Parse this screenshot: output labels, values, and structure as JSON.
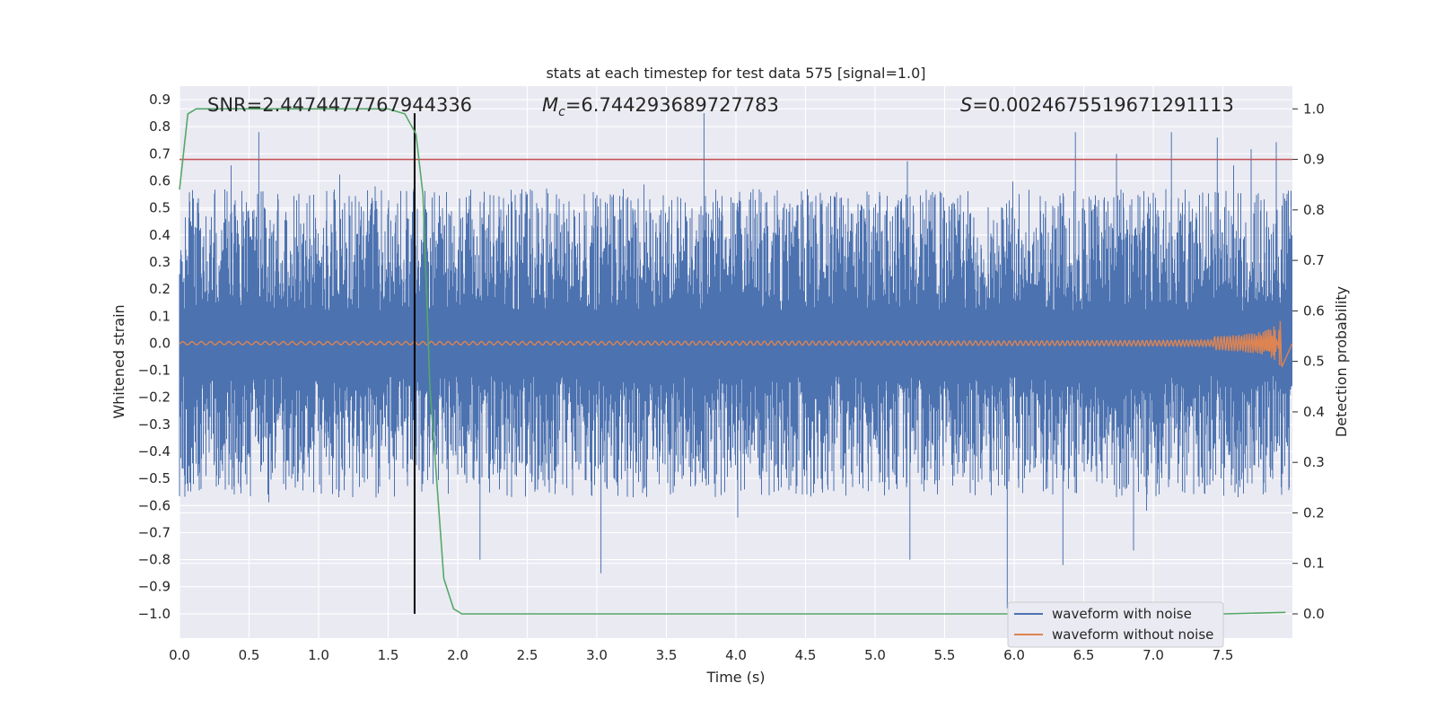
{
  "chart_data": {
    "type": "line",
    "title": "stats at each timestep for test data 575 [signal=1.0]",
    "xlabel": "Time (s)",
    "ylabel": "Whitened strain",
    "y2label": "Detection probability",
    "xlim": [
      0.0,
      8.0
    ],
    "ylim": [
      -1.09,
      0.95
    ],
    "y2lim": [
      -0.048,
      1.045
    ],
    "x_ticks": [
      "0.0",
      "0.5",
      "1.0",
      "1.5",
      "2.0",
      "2.5",
      "3.0",
      "3.5",
      "4.0",
      "4.5",
      "5.0",
      "5.5",
      "6.0",
      "6.5",
      "7.0",
      "7.5"
    ],
    "y_ticks": [
      "0.9",
      "0.8",
      "0.7",
      "0.6",
      "0.5",
      "0.4",
      "0.3",
      "0.2",
      "0.1",
      "0.0",
      "−0.1",
      "−0.2",
      "−0.3",
      "−0.4",
      "−0.5",
      "−0.6",
      "−0.7",
      "−0.8",
      "−0.9",
      "−1.0"
    ],
    "y2_ticks": [
      "1.0",
      "0.9",
      "0.8",
      "0.7",
      "0.6",
      "0.5",
      "0.4",
      "0.3",
      "0.2",
      "0.1",
      "0.0"
    ],
    "grid": true,
    "legend_position": "bottom-right",
    "stats": {
      "snr_text": "SNR=2.4474477767944336",
      "mc_symbol": "M",
      "mc_subscript": "c",
      "mc_value": "=6.744293689727783",
      "s_symbol": "S",
      "s_value": "=0.0024675519671291113"
    },
    "colors": {
      "noise": "#4c72b0",
      "clean": "#dd8452",
      "probability": "#55a868",
      "threshold": "#c44e52",
      "marker": "#000000",
      "background": "#eaeaf2",
      "grid": "#ffffff"
    },
    "series": [
      {
        "name": "waveform with noise",
        "kind": "noisy strain",
        "amplitude_envelope": [
          -1.0,
          0.85
        ],
        "notable_peaks": [
          {
            "x": 3.77,
            "y": 0.85
          },
          {
            "x": 7.46,
            "y": 0.76
          },
          {
            "x": 7.13,
            "y": 0.78
          },
          {
            "x": 6.44,
            "y": 0.78
          },
          {
            "x": 0.57,
            "y": 0.78
          },
          {
            "x": 5.95,
            "y": -0.98
          },
          {
            "x": 3.03,
            "y": -0.85
          },
          {
            "x": 2.16,
            "y": -0.8
          },
          {
            "x": 5.25,
            "y": -0.8
          },
          {
            "x": 6.35,
            "y": -0.82
          }
        ]
      },
      {
        "name": "waveform without noise",
        "kind": "chirp",
        "x_end": 7.93,
        "peak_amplitude": 0.09
      },
      {
        "name": "detection probability",
        "axis": "right",
        "x": [
          0.0,
          0.06,
          0.12,
          0.3,
          0.6,
          1.0,
          1.3,
          1.5,
          1.62,
          1.7,
          1.75,
          1.8,
          1.9,
          1.97,
          2.03,
          2.5,
          4.0,
          6.0,
          7.5,
          7.95
        ],
        "y": [
          0.84,
          0.99,
          1.0,
          1.0,
          1.0,
          1.0,
          1.0,
          1.0,
          0.99,
          0.95,
          0.83,
          0.45,
          0.07,
          0.01,
          0.0,
          0.0,
          0.0,
          0.0,
          0.0,
          0.003
        ]
      },
      {
        "name": "threshold",
        "axis": "right",
        "y": 0.9
      },
      {
        "name": "event marker",
        "x": 1.69,
        "y_range": [
          -1.0,
          0.85
        ]
      }
    ]
  }
}
